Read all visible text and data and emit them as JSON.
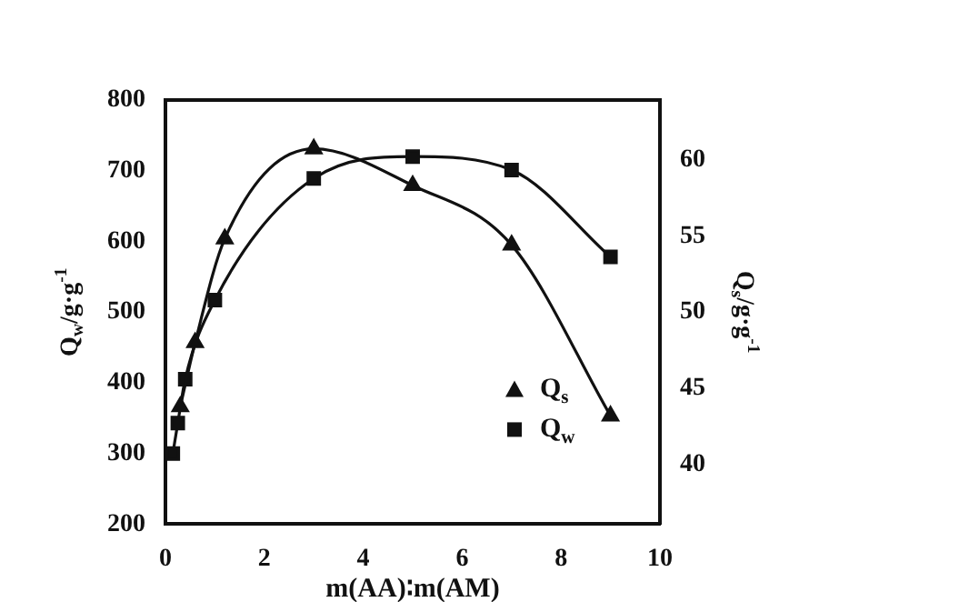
{
  "chart_data": {
    "type": "line",
    "xlabel": "m(AA)∶m(AM)",
    "ylabel": "Q$_{w}$/g·g$^{-1}$",
    "y2label": "Q$_{s}$/g·g$^{-1}$",
    "series": [
      {
        "name": "Q$_{s}$",
        "color": "#111111",
        "marker": "triangle",
        "axis": "y2",
        "x": [
          0.3,
          0.6,
          1.2,
          3,
          5,
          7,
          9
        ],
        "values": [
          43.8,
          48.0,
          54.8,
          60.7,
          58.3,
          54.4,
          43.2
        ]
      },
      {
        "name": "Q$_{w}$",
        "color": "#111111",
        "marker": "square",
        "x": [
          0.15,
          0.25,
          0.4,
          1,
          3,
          5,
          7,
          9
        ],
        "values": [
          300,
          343,
          405,
          517,
          689,
          720,
          701,
          578
        ]
      }
    ],
    "xlim": [
      0,
      10
    ],
    "xticks": [
      0,
      2,
      4,
      6,
      8,
      10
    ],
    "ylim": [
      200,
      800
    ],
    "yticks": [
      200,
      300,
      400,
      500,
      600,
      700,
      800
    ],
    "y2lim": [
      36.1,
      63.9
    ],
    "y2ticks": [
      40,
      45,
      50,
      55,
      60
    ],
    "grid": false,
    "legend": "bottom right"
  }
}
